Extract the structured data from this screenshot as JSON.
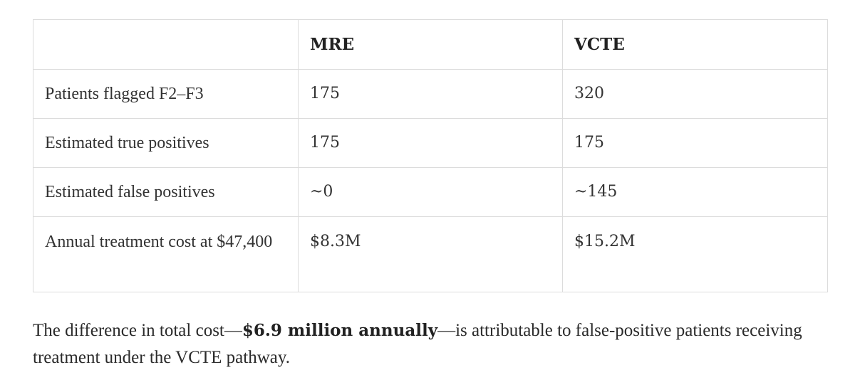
{
  "table": {
    "headers": [
      "",
      "MRE",
      "VCTE"
    ],
    "rows": [
      {
        "label": "Patients flagged F2–F3",
        "mre": "175",
        "vcte": "320"
      },
      {
        "label": "Estimated true positives",
        "mre": "175",
        "vcte": "175"
      },
      {
        "label": "Estimated false positives",
        "mre": "~0",
        "vcte": "~145"
      },
      {
        "label": "Annual treatment cost at $47,400",
        "mre": "$8.3M",
        "vcte": "$15.2M"
      }
    ]
  },
  "paragraph": {
    "before": "The difference in total cost—",
    "bold": "$6.9 million annually",
    "after": "—is attributable to false-positive patients receiving treatment under the VCTE pathway."
  }
}
